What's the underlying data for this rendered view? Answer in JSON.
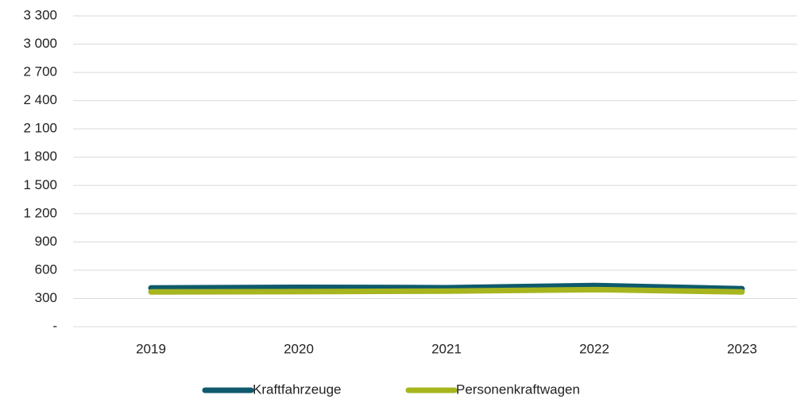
{
  "chart_data": {
    "type": "line",
    "categories": [
      "2019",
      "2020",
      "2021",
      "2022",
      "2023"
    ],
    "series": [
      {
        "name": "Kraftfahrzeuge",
        "color": "#0e5a6c",
        "values": [
          411,
          418,
          414,
          437,
          403
        ]
      },
      {
        "name": "Personenkraftwagen",
        "color": "#a7b51e",
        "values": [
          369,
          372,
          378,
          394,
          369
        ]
      }
    ],
    "ylim": [
      0,
      3300
    ],
    "yticks": [
      {
        "value": 0,
        "label": "-"
      },
      300,
      600,
      900,
      {
        "value": 1200,
        "label": "1 200"
      },
      {
        "value": 1500,
        "label": "1 500"
      },
      {
        "value": 1800,
        "label": "1 800"
      },
      {
        "value": 2100,
        "label": "2 100"
      },
      {
        "value": 2400,
        "label": "2 400"
      },
      {
        "value": 2700,
        "label": "2 700"
      },
      {
        "value": 3000,
        "label": "3 000"
      },
      {
        "value": 3300,
        "label": "3 300"
      }
    ],
    "grid": true,
    "legend": "bottom"
  }
}
